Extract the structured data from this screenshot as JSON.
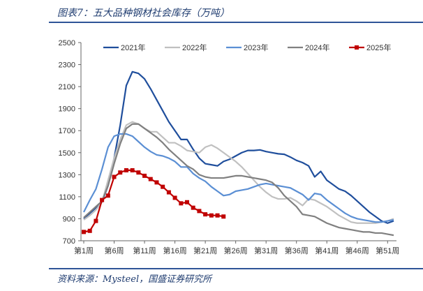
{
  "header": {
    "title": "图表7：五大品种钢材社会库存（万吨）"
  },
  "footer": {
    "source": "资料来源：Mysteel，国盛证券研究所"
  },
  "chart_data": {
    "type": "line",
    "title": "图表7：五大品种钢材社会库存（万吨）",
    "xlabel": "",
    "ylabel": "",
    "ylim": [
      700,
      2500
    ],
    "yticks": [
      700,
      900,
      1100,
      1300,
      1500,
      1700,
      1900,
      2100,
      2300,
      2500
    ],
    "xticks": [
      "第1周",
      "第6周",
      "第11周",
      "第16周",
      "第21周",
      "第26周",
      "第31周",
      "第36周",
      "第41周",
      "第46周",
      "第51周"
    ],
    "x_weeks": 52,
    "legend": "top",
    "series": [
      {
        "name": "2021年",
        "color": "#1f4e9c",
        "marker": false,
        "values": [
          900,
          950,
          1000,
          1050,
          1200,
          1450,
          1750,
          2110,
          2235,
          2220,
          2170,
          2080,
          1980,
          1880,
          1780,
          1700,
          1620,
          1620,
          1530,
          1450,
          1400,
          1390,
          1380,
          1420,
          1440,
          1470,
          1500,
          1520,
          1520,
          1525,
          1510,
          1500,
          1490,
          1485,
          1460,
          1430,
          1410,
          1380,
          1280,
          1330,
          1250,
          1210,
          1170,
          1150,
          1110,
          1060,
          1010,
          960,
          920,
          880,
          860,
          880
        ]
      },
      {
        "name": "2022年",
        "color": "#c0c0c0",
        "marker": false,
        "values": [
          890,
          930,
          980,
          1050,
          1250,
          1450,
          1620,
          1750,
          1780,
          1760,
          1720,
          1690,
          1690,
          1640,
          1590,
          1590,
          1560,
          1520,
          1510,
          1500,
          1550,
          1570,
          1540,
          1500,
          1460,
          1420,
          1370,
          1310,
          1250,
          1190,
          1140,
          1100,
          1080,
          1080,
          1090,
          1060,
          1020,
          1080,
          1070,
          1040,
          1010,
          970,
          930,
          900,
          870,
          860,
          860,
          860,
          860,
          870,
          880,
          900
        ]
      },
      {
        "name": "2023年",
        "color": "#5b8fd4",
        "marker": false,
        "values": [
          960,
          1070,
          1170,
          1350,
          1550,
          1650,
          1670,
          1670,
          1650,
          1600,
          1550,
          1510,
          1480,
          1470,
          1450,
          1420,
          1370,
          1370,
          1310,
          1270,
          1240,
          1190,
          1150,
          1110,
          1120,
          1150,
          1160,
          1170,
          1190,
          1210,
          1220,
          1210,
          1200,
          1190,
          1180,
          1150,
          1120,
          1070,
          1130,
          1120,
          1070,
          1030,
          990,
          950,
          920,
          900,
          890,
          880,
          870,
          870,
          880,
          890
        ]
      },
      {
        "name": "2024年",
        "color": "#808080",
        "marker": false,
        "values": [
          910,
          960,
          1010,
          1060,
          1200,
          1400,
          1580,
          1720,
          1760,
          1760,
          1720,
          1680,
          1640,
          1590,
          1530,
          1480,
          1430,
          1380,
          1350,
          1300,
          1280,
          1270,
          1270,
          1270,
          1280,
          1290,
          1290,
          1280,
          1270,
          1260,
          1250,
          1230,
          1180,
          1110,
          1060,
          1010,
          940,
          930,
          920,
          890,
          860,
          840,
          820,
          810,
          800,
          790,
          780,
          780,
          770,
          770,
          760,
          750
        ]
      },
      {
        "name": "2025年",
        "color": "#c00000",
        "marker": true,
        "values": [
          780,
          790,
          880,
          1070,
          1110,
          1280,
          1320,
          1340,
          1340,
          1320,
          1290,
          1260,
          1230,
          1190,
          1140,
          1090,
          1040,
          1050,
          1000,
          970,
          940,
          930,
          930,
          920
        ]
      }
    ]
  }
}
